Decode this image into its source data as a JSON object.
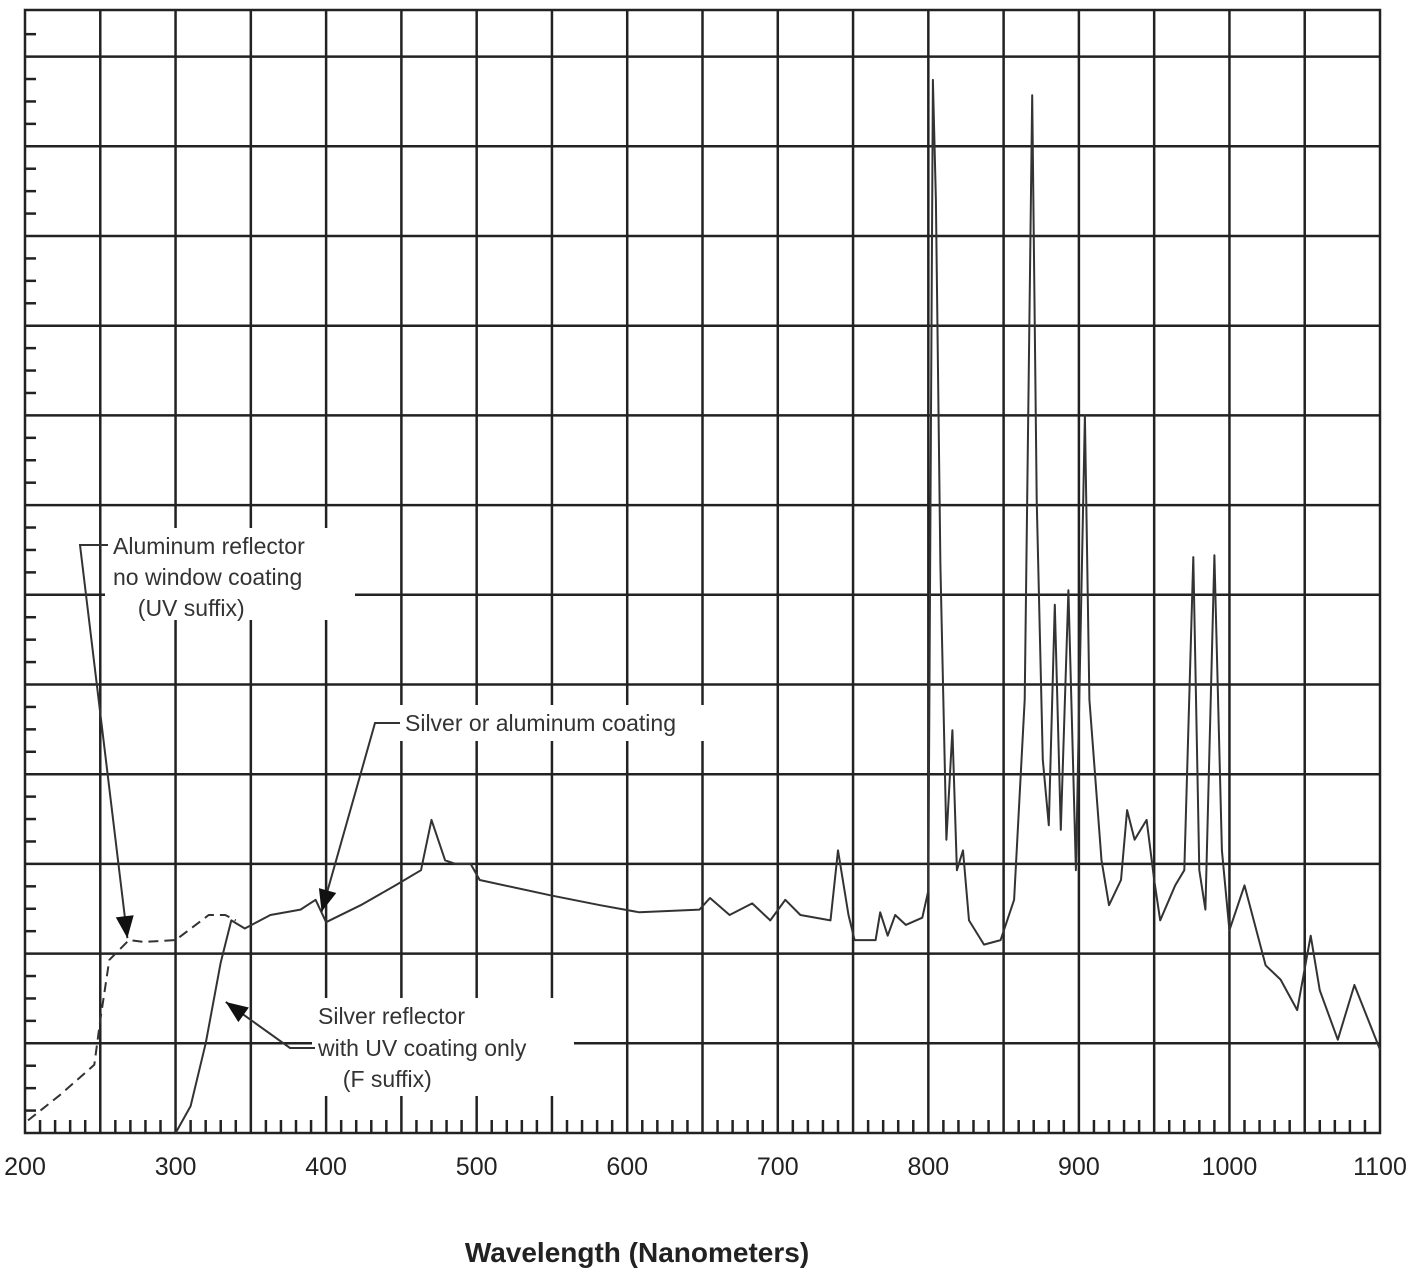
{
  "chart_data": {
    "type": "line",
    "title": "",
    "xlabel": "Wavelength (Nanometers)",
    "ylabel": "",
    "xlim": [
      200,
      1100
    ],
    "ylim": [
      0,
      12.5
    ],
    "x_ticks": [
      200,
      300,
      400,
      500,
      600,
      700,
      800,
      900,
      1000,
      1100
    ],
    "x_grid_step": 50,
    "y_grid_step": 1,
    "y_tick_labels": "none",
    "grid": true,
    "colors": {
      "axis": "#222222",
      "line": "#333333"
    },
    "series": [
      {
        "style": "dashed",
        "x": [
          202,
          223,
          246,
          250,
          256,
          269,
          279,
          300,
          322,
          333,
          340
        ],
        "y": [
          0.14,
          0.42,
          0.76,
          1.26,
          1.93,
          2.15,
          2.13,
          2.15,
          2.43,
          2.43,
          2.37
        ]
      },
      {
        "style": "solid",
        "x": [
          300,
          310,
          320,
          330,
          337,
          346,
          363,
          383,
          393,
          400,
          423,
          446,
          463,
          470,
          479,
          486,
          496,
          502,
          549,
          582,
          608,
          648,
          655,
          668,
          683,
          695,
          705,
          715,
          735,
          740,
          747,
          751,
          765,
          768,
          773,
          778,
          785,
          796,
          800,
          803,
          805,
          808,
          812,
          816,
          819,
          823,
          827,
          837,
          848,
          857,
          864,
          869,
          872,
          876,
          880,
          884,
          888,
          893,
          898,
          904,
          907,
          915,
          920,
          928,
          932,
          937,
          945,
          950,
          954,
          964,
          970,
          976,
          980,
          984,
          990,
          995,
          1000,
          1010,
          1024,
          1034,
          1045,
          1054,
          1060,
          1072,
          1083,
          1100
        ],
        "y": [
          0,
          0.3,
          1.0,
          1.9,
          2.37,
          2.28,
          2.43,
          2.49,
          2.6,
          2.35,
          2.54,
          2.76,
          2.93,
          3.49,
          3.04,
          3.0,
          3.0,
          2.82,
          2.65,
          2.54,
          2.46,
          2.49,
          2.62,
          2.43,
          2.56,
          2.37,
          2.6,
          2.43,
          2.37,
          3.15,
          2.43,
          2.15,
          2.15,
          2.46,
          2.2,
          2.43,
          2.32,
          2.4,
          2.7,
          11.74,
          10.4,
          6.33,
          3.27,
          4.49,
          2.93,
          3.15,
          2.37,
          2.1,
          2.15,
          2.6,
          4.83,
          11.57,
          7.06,
          4.16,
          3.43,
          5.89,
          3.38,
          6.05,
          2.93,
          8.0,
          4.83,
          3.04,
          2.54,
          2.82,
          3.6,
          3.27,
          3.49,
          2.82,
          2.37,
          2.76,
          2.93,
          6.42,
          2.93,
          2.49,
          6.44,
          3.15,
          2.26,
          2.76,
          1.87,
          1.71,
          1.37,
          2.2,
          1.59,
          1.04,
          1.65,
          0.93
        ]
      }
    ],
    "annotations": [
      {
        "lines": [
          "Aluminum reflector",
          "no window coating",
          "  (UV suffix)"
        ],
        "points_to": [
          268,
          2.15
        ]
      },
      {
        "lines": [
          "Silver or aluminum coating"
        ],
        "points_to": [
          397,
          2.5
        ]
      },
      {
        "lines": [
          "Silver reflector",
          "with UV coating only",
          "  (F suffix)"
        ],
        "points_to": [
          330,
          1.26
        ]
      }
    ]
  }
}
